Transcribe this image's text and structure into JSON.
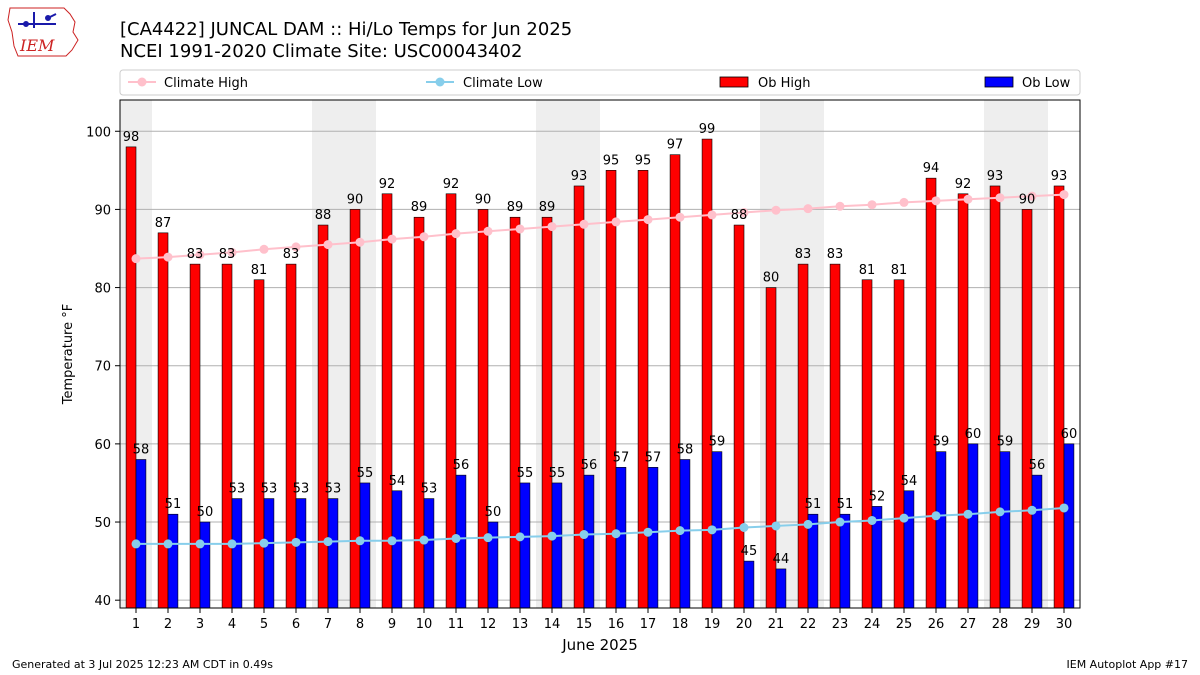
{
  "title_line1": "[CA4422] JUNCAL DAM :: Hi/Lo Temps for Jun 2025",
  "title_line2": "NCEI 1991-2020 Climate Site: USC00043402",
  "logo_text": "IEM",
  "footer_left": "Generated at 3 Jul 2025 12:23 AM CDT in 0.49s",
  "footer_right": "IEM Autoplot App #17",
  "colors": {
    "ob_high": "#ff0000",
    "ob_low": "#0000ff",
    "climate_high": "#ffc0cb",
    "climate_low": "#87ceeb",
    "weekend_shade": "#eeeeee"
  },
  "chart_data": {
    "type": "bar",
    "xlabel": "June 2025",
    "ylabel": "Temperature °F",
    "ylim": [
      39,
      104
    ],
    "yticks": [
      40,
      50,
      60,
      70,
      80,
      90,
      100
    ],
    "grid": "horizontal",
    "legend_position": "top",
    "categories": [
      1,
      2,
      3,
      4,
      5,
      6,
      7,
      8,
      9,
      10,
      11,
      12,
      13,
      14,
      15,
      16,
      17,
      18,
      19,
      20,
      21,
      22,
      23,
      24,
      25,
      26,
      27,
      28,
      29,
      30
    ],
    "shaded_days": [
      1,
      7,
      8,
      14,
      15,
      21,
      22,
      28,
      29
    ],
    "series": [
      {
        "name": "Climate High",
        "kind": "line",
        "values": [
          83.7,
          83.9,
          84.2,
          84.5,
          84.9,
          85.2,
          85.5,
          85.8,
          86.2,
          86.5,
          86.9,
          87.2,
          87.5,
          87.8,
          88.1,
          88.4,
          88.7,
          89.0,
          89.3,
          89.6,
          89.9,
          90.1,
          90.4,
          90.6,
          90.9,
          91.1,
          91.3,
          91.5,
          91.7,
          91.9
        ]
      },
      {
        "name": "Climate Low",
        "kind": "line",
        "values": [
          47.2,
          47.2,
          47.2,
          47.2,
          47.3,
          47.4,
          47.5,
          47.6,
          47.6,
          47.7,
          47.9,
          48.0,
          48.1,
          48.2,
          48.4,
          48.5,
          48.7,
          48.9,
          49.0,
          49.3,
          49.5,
          49.7,
          50.0,
          50.2,
          50.5,
          50.8,
          51.0,
          51.3,
          51.5,
          51.8
        ]
      },
      {
        "name": "Ob High",
        "kind": "bar",
        "values": [
          98,
          87,
          83,
          83,
          81,
          83,
          88,
          90,
          92,
          89,
          92,
          90,
          89,
          89,
          93,
          95,
          95,
          97,
          99,
          88,
          80,
          83,
          83,
          81,
          81,
          94,
          92,
          93,
          90,
          93
        ]
      },
      {
        "name": "Ob Low",
        "kind": "bar",
        "values": [
          58,
          51,
          50,
          53,
          53,
          53,
          53,
          55,
          54,
          53,
          56,
          50,
          55,
          55,
          56,
          57,
          57,
          58,
          59,
          45,
          44,
          51,
          51,
          52,
          54,
          59,
          60,
          59,
          56,
          60
        ]
      }
    ]
  }
}
